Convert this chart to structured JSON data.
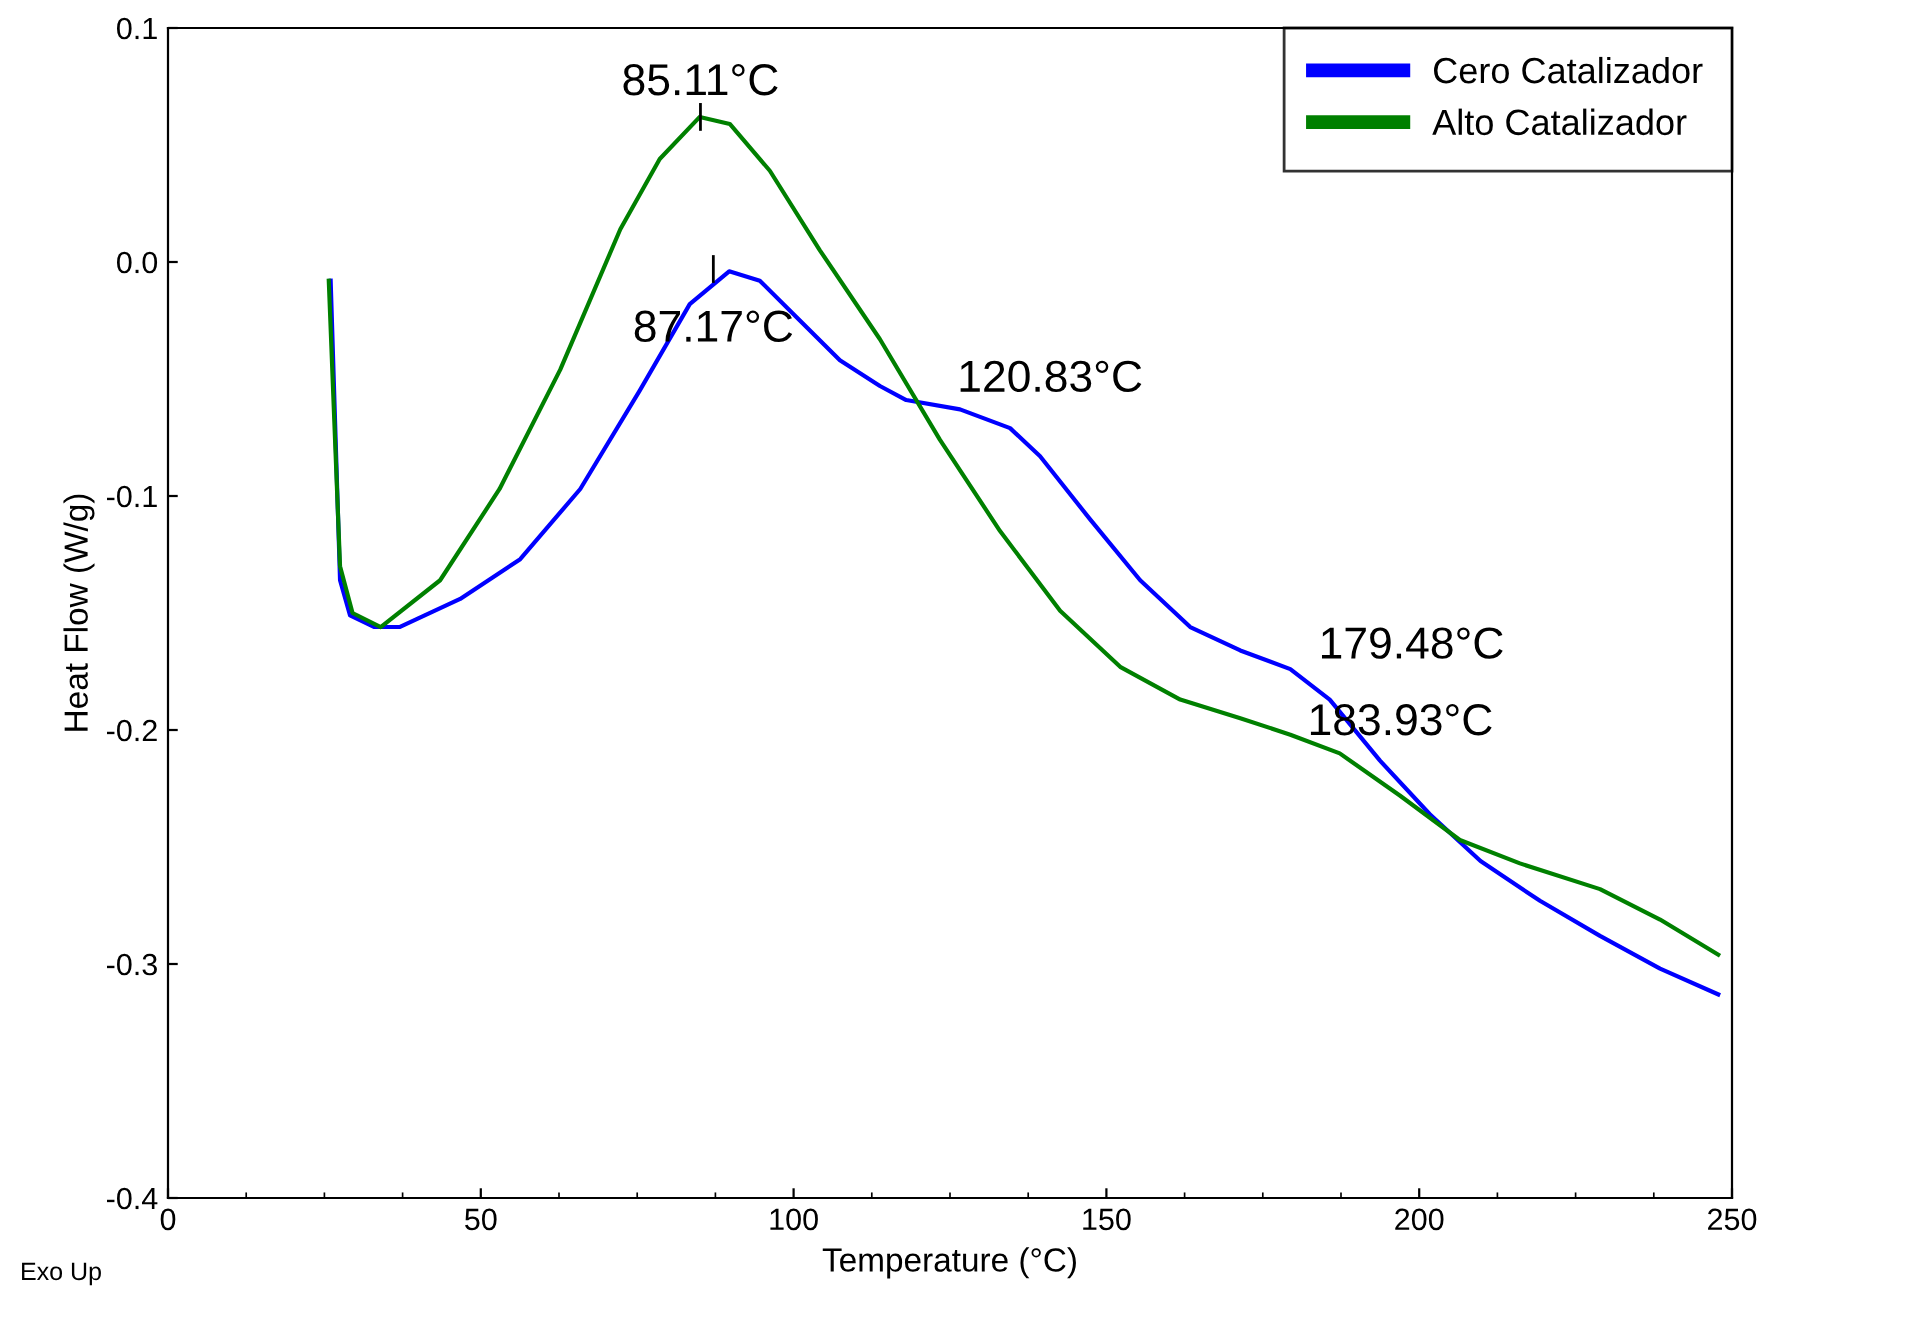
{
  "chart_data": {
    "type": "line",
    "xlabel": "Temperature (°C)",
    "ylabel": "Heat Flow (W/g)",
    "xlim": [
      0,
      250
    ],
    "xticks": [
      0,
      50,
      100,
      150,
      200,
      250
    ],
    "ylim": [
      -0.4,
      0.1
    ],
    "yticks": [
      {
        "value": -0.4,
        "label": "-0.4"
      },
      {
        "value": -0.3,
        "label": "-0.3"
      },
      {
        "value": -0.2,
        "label": "-0.2"
      },
      {
        "value": -0.1,
        "label": "-0.1"
      },
      {
        "value": 0.0,
        "label": "0.0"
      },
      {
        "value": 0.1,
        "label": "0.1"
      }
    ],
    "grid": false,
    "legend": "top right",
    "series": [
      {
        "name": "Cero Catalizador",
        "color": "#0000ff",
        "x": [
          26,
          27.5,
          29.1,
          33,
          37,
          46.7,
          56.3,
          65.9,
          75.4,
          83.4,
          89.7,
          94.6,
          101,
          107.4,
          113.8,
          118,
          126.6,
          134.6,
          139.4,
          147.4,
          155.4,
          163.4,
          171.4,
          179.4,
          185.7,
          193.7,
          201.7,
          209.8,
          219.3,
          228.9,
          238.5,
          247.8
        ],
        "values": [
          -0.008,
          -0.136,
          -0.151,
          -0.156,
          -0.156,
          -0.144,
          -0.127,
          -0.097,
          -0.055,
          -0.018,
          -0.004,
          -0.008,
          -0.025,
          -0.042,
          -0.053,
          -0.059,
          -0.063,
          -0.071,
          -0.083,
          -0.11,
          -0.136,
          -0.156,
          -0.166,
          -0.174,
          -0.187,
          -0.213,
          -0.236,
          -0.256,
          -0.273,
          -0.288,
          -0.302,
          -0.313
        ]
      },
      {
        "name": "Alto Catalizador",
        "color": "#008000",
        "x": [
          25.7,
          27.5,
          29.5,
          34,
          43.5,
          53,
          62.7,
          72.3,
          78.6,
          85,
          89.8,
          96.2,
          104.2,
          113.8,
          123.4,
          133,
          142.6,
          152.2,
          161.8,
          171.4,
          179.4,
          187.3,
          196.9,
          206.5,
          216.1,
          228.9,
          238.5,
          247.8
        ],
        "values": [
          -0.008,
          -0.13,
          -0.15,
          -0.156,
          -0.136,
          -0.097,
          -0.046,
          0.014,
          0.044,
          0.062,
          0.059,
          0.039,
          0.005,
          -0.033,
          -0.076,
          -0.115,
          -0.149,
          -0.173,
          -0.187,
          -0.195,
          -0.202,
          -0.21,
          -0.228,
          -0.247,
          -0.257,
          -0.268,
          -0.281,
          -0.296
        ]
      }
    ],
    "annotations": [
      {
        "text": "85.11°C",
        "x": 85.11,
        "y": 0.062
      },
      {
        "text": "87.17°C",
        "x": 87.17,
        "y": -0.003
      },
      {
        "text": "120.83°C",
        "x": 120.83,
        "y": -0.06
      },
      {
        "text": "179.48°C",
        "x": 179.48,
        "y": -0.174
      },
      {
        "text": "183.93°C",
        "x": 183.93,
        "y": -0.183
      },
      "Exo Up"
    ]
  }
}
